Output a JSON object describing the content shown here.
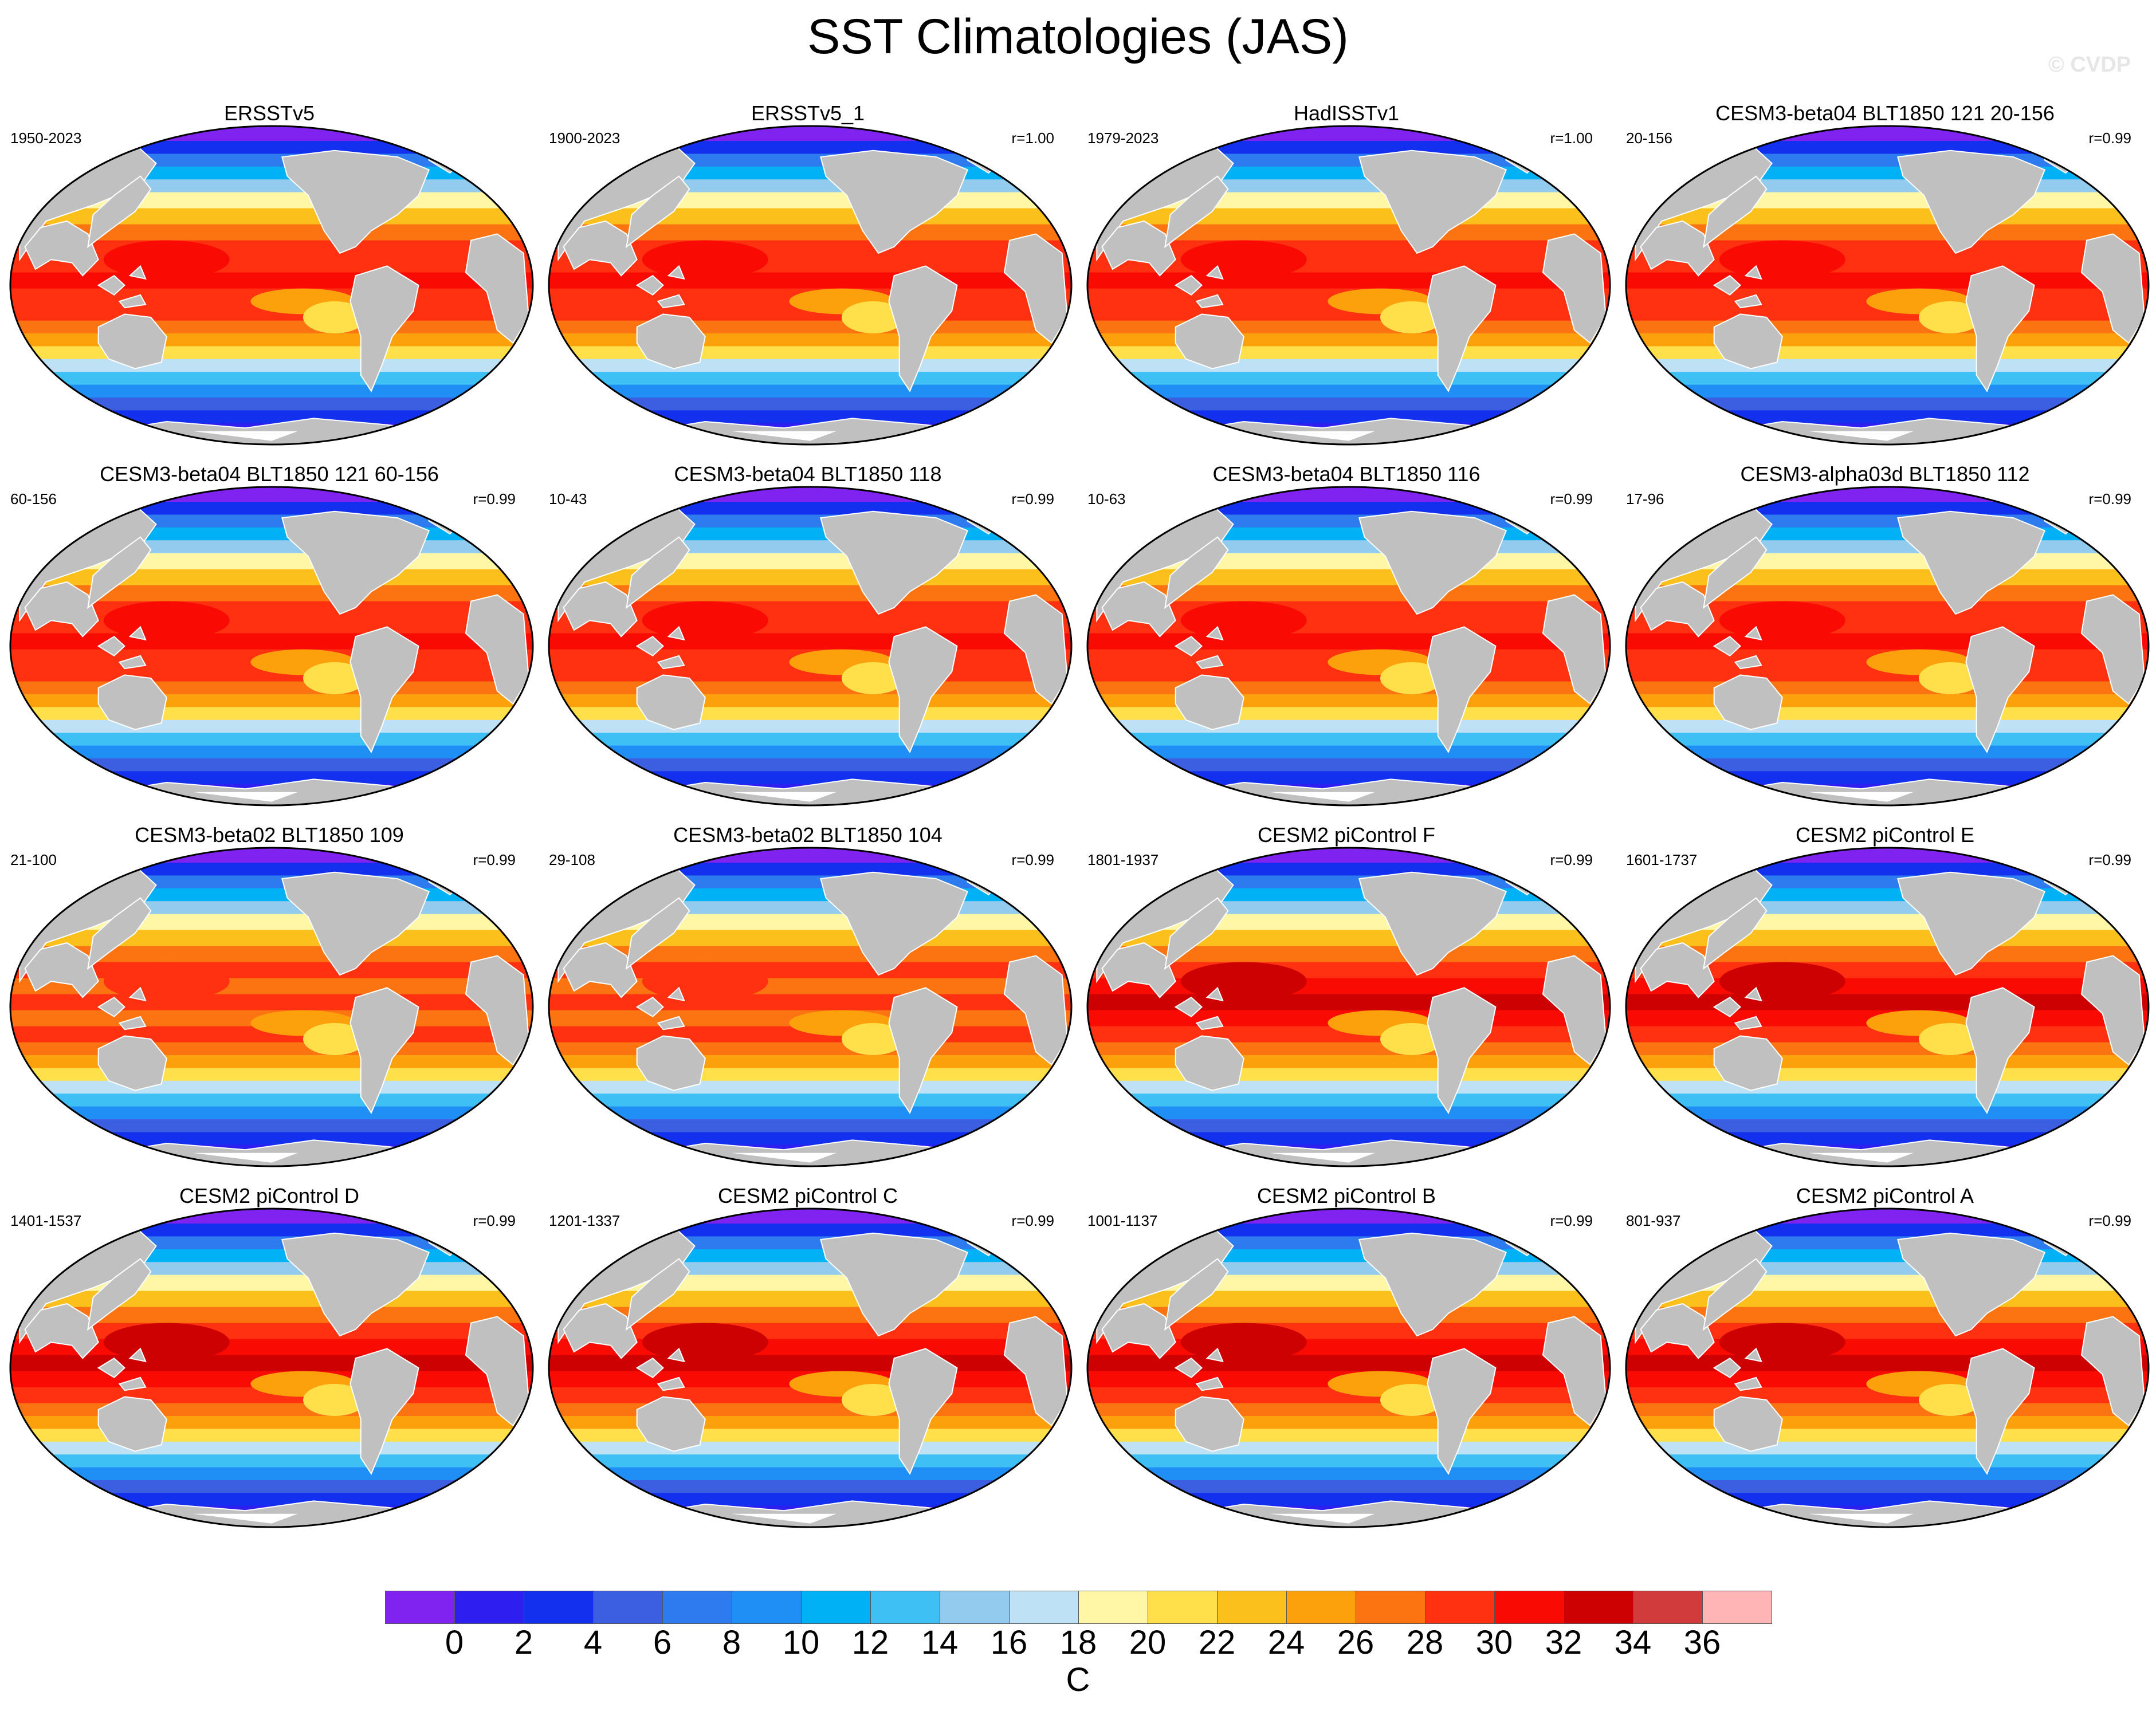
{
  "title": "SST Climatologies (JAS)",
  "watermark": "© CVDP",
  "chart_data": {
    "type": "heatmap",
    "title": "SST Climatologies (JAS)",
    "units": "C",
    "projection": "Robinson, Pacific-centered global map",
    "levels": [
      0,
      2,
      4,
      6,
      8,
      10,
      12,
      14,
      16,
      18,
      20,
      22,
      24,
      26,
      28,
      30,
      32,
      34,
      36
    ],
    "colors": [
      "#8023f0",
      "#2e1ff0",
      "#1230ee",
      "#3b5fe0",
      "#2e7bf0",
      "#1f8ff5",
      "#00b2f5",
      "#3fc0f5",
      "#93cbee",
      "#bfe1f5",
      "#fff7a6",
      "#ffdf4a",
      "#fcc01d",
      "#fca10c",
      "#fb7411",
      "#ff3111",
      "#f90a03",
      "#cd0002",
      "#d23b3b",
      "#ffb4b6"
    ],
    "land_color": "#c0c0c0",
    "panels": [
      {
        "title": "ERSSTv5",
        "period": "1950-2023",
        "r": "",
        "tropical_max_level": 30
      },
      {
        "title": "ERSSTv5_1",
        "period": "1900-2023",
        "r": "r=1.00",
        "tropical_max_level": 30
      },
      {
        "title": "HadISSTv1",
        "period": "1979-2023",
        "r": "r=1.00",
        "tropical_max_level": 30
      },
      {
        "title": "CESM3-beta04 BLT1850 121 20-156",
        "period": "20-156",
        "r": "r=0.99",
        "tropical_max_level": 30
      },
      {
        "title": "CESM3-beta04 BLT1850 121 60-156",
        "period": "60-156",
        "r": "r=0.99",
        "tropical_max_level": 30
      },
      {
        "title": "CESM3-beta04 BLT1850 118",
        "period": "10-43",
        "r": "r=0.99",
        "tropical_max_level": 30
      },
      {
        "title": "CESM3-beta04 BLT1850 116",
        "period": "10-63",
        "r": "r=0.99",
        "tropical_max_level": 30
      },
      {
        "title": "CESM3-alpha03d BLT1850 112",
        "period": "17-96",
        "r": "r=0.99",
        "tropical_max_level": 30
      },
      {
        "title": "CESM3-beta02 BLT1850 109",
        "period": "21-100",
        "r": "r=0.99",
        "tropical_max_level": 28
      },
      {
        "title": "CESM3-beta02 BLT1850 104",
        "period": "29-108",
        "r": "r=0.99",
        "tropical_max_level": 28
      },
      {
        "title": "CESM2 piControl F",
        "period": "1801-1937",
        "r": "r=0.99",
        "tropical_max_level": 32
      },
      {
        "title": "CESM2 piControl E",
        "period": "1601-1737",
        "r": "r=0.99",
        "tropical_max_level": 32
      },
      {
        "title": "CESM2 piControl D",
        "period": "1401-1537",
        "r": "r=0.99",
        "tropical_max_level": 32
      },
      {
        "title": "CESM2 piControl C",
        "period": "1201-1337",
        "r": "r=0.99",
        "tropical_max_level": 32
      },
      {
        "title": "CESM2 piControl B",
        "period": "1001-1137",
        "r": "r=0.99",
        "tropical_max_level": 32
      },
      {
        "title": "CESM2 piControl A",
        "period": "801-937",
        "r": "r=0.99",
        "tropical_max_level": 32
      }
    ],
    "legend": "horizontal colorbar at bottom",
    "grid": false
  }
}
